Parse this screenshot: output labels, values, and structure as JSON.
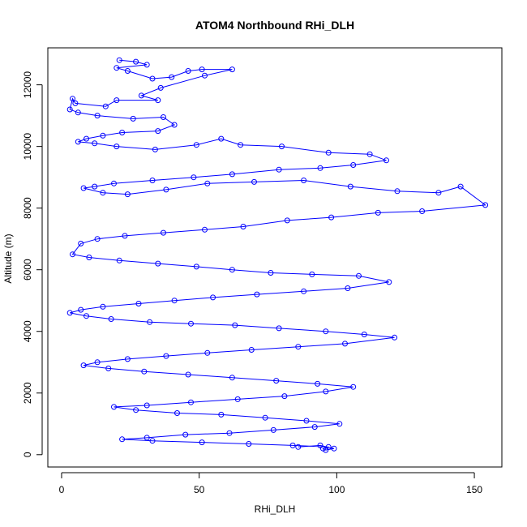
{
  "chart_data": {
    "type": "scatter",
    "title": "ATOM4 Northbound RHi_DLH",
    "xlabel": "RHi_DLH",
    "ylabel": "Altitude (m)",
    "xlim": [
      -5,
      160
    ],
    "ylim": [
      -400,
      13200
    ],
    "x_ticks": [
      0,
      50,
      100,
      150
    ],
    "y_ticks": [
      0,
      2000,
      4000,
      6000,
      8000,
      10000,
      12000
    ],
    "grid": false,
    "legend": "none",
    "colors": {
      "series": "#0000ff",
      "axes": "#000000",
      "background": "#ffffff"
    },
    "series": [
      {
        "values": [
          [
            21,
            12800
          ],
          [
            27,
            12750
          ],
          [
            31,
            12650
          ],
          [
            20,
            12550
          ],
          [
            24,
            12450
          ],
          [
            33,
            12200
          ],
          [
            40,
            12250
          ],
          [
            46,
            12450
          ],
          [
            51,
            12500
          ],
          [
            62,
            12500
          ],
          [
            52,
            12300
          ],
          [
            36,
            11900
          ],
          [
            29,
            11650
          ],
          [
            35,
            11500
          ],
          [
            20,
            11500
          ],
          [
            16,
            11300
          ],
          [
            5,
            11400
          ],
          [
            4,
            11550
          ],
          [
            3,
            11200
          ],
          [
            6,
            11100
          ],
          [
            13,
            11000
          ],
          [
            26,
            10900
          ],
          [
            37,
            10950
          ],
          [
            41,
            10700
          ],
          [
            35,
            10500
          ],
          [
            22,
            10450
          ],
          [
            15,
            10350
          ],
          [
            9,
            10250
          ],
          [
            6,
            10150
          ],
          [
            12,
            10100
          ],
          [
            20,
            10000
          ],
          [
            34,
            9900
          ],
          [
            49,
            10050
          ],
          [
            58,
            10250
          ],
          [
            65,
            10050
          ],
          [
            80,
            10000
          ],
          [
            97,
            9800
          ],
          [
            112,
            9750
          ],
          [
            118,
            9550
          ],
          [
            106,
            9400
          ],
          [
            94,
            9300
          ],
          [
            79,
            9250
          ],
          [
            62,
            9100
          ],
          [
            48,
            9000
          ],
          [
            33,
            8900
          ],
          [
            19,
            8800
          ],
          [
            12,
            8700
          ],
          [
            8,
            8650
          ],
          [
            15,
            8500
          ],
          [
            24,
            8450
          ],
          [
            38,
            8600
          ],
          [
            53,
            8800
          ],
          [
            70,
            8850
          ],
          [
            88,
            8900
          ],
          [
            105,
            8700
          ],
          [
            122,
            8550
          ],
          [
            137,
            8500
          ],
          [
            145,
            8700
          ],
          [
            154,
            8100
          ],
          [
            131,
            7900
          ],
          [
            115,
            7850
          ],
          [
            98,
            7700
          ],
          [
            82,
            7600
          ],
          [
            66,
            7400
          ],
          [
            52,
            7300
          ],
          [
            37,
            7200
          ],
          [
            23,
            7100
          ],
          [
            13,
            7000
          ],
          [
            7,
            6850
          ],
          [
            4,
            6500
          ],
          [
            10,
            6400
          ],
          [
            21,
            6300
          ],
          [
            35,
            6200
          ],
          [
            49,
            6100
          ],
          [
            62,
            6000
          ],
          [
            76,
            5900
          ],
          [
            91,
            5850
          ],
          [
            108,
            5800
          ],
          [
            119,
            5600
          ],
          [
            104,
            5400
          ],
          [
            88,
            5300
          ],
          [
            71,
            5200
          ],
          [
            55,
            5100
          ],
          [
            41,
            5000
          ],
          [
            28,
            4900
          ],
          [
            15,
            4800
          ],
          [
            7,
            4700
          ],
          [
            3,
            4600
          ],
          [
            9,
            4500
          ],
          [
            18,
            4400
          ],
          [
            32,
            4300
          ],
          [
            47,
            4250
          ],
          [
            63,
            4200
          ],
          [
            79,
            4100
          ],
          [
            96,
            4000
          ],
          [
            110,
            3900
          ],
          [
            121,
            3800
          ],
          [
            103,
            3600
          ],
          [
            86,
            3500
          ],
          [
            69,
            3400
          ],
          [
            53,
            3300
          ],
          [
            38,
            3200
          ],
          [
            24,
            3100
          ],
          [
            13,
            3000
          ],
          [
            8,
            2900
          ],
          [
            17,
            2800
          ],
          [
            30,
            2700
          ],
          [
            46,
            2600
          ],
          [
            62,
            2500
          ],
          [
            78,
            2400
          ],
          [
            93,
            2300
          ],
          [
            106,
            2200
          ],
          [
            96,
            2050
          ],
          [
            81,
            1900
          ],
          [
            64,
            1800
          ],
          [
            47,
            1700
          ],
          [
            31,
            1600
          ],
          [
            19,
            1550
          ],
          [
            27,
            1450
          ],
          [
            42,
            1350
          ],
          [
            58,
            1300
          ],
          [
            74,
            1200
          ],
          [
            89,
            1100
          ],
          [
            101,
            1000
          ],
          [
            92,
            900
          ],
          [
            77,
            800
          ],
          [
            61,
            700
          ],
          [
            45,
            650
          ],
          [
            31,
            550
          ],
          [
            22,
            500
          ],
          [
            33,
            450
          ],
          [
            51,
            400
          ],
          [
            68,
            350
          ],
          [
            84,
            300
          ],
          [
            97,
            250
          ],
          [
            95,
            200
          ],
          [
            96,
            150
          ],
          [
            99,
            200
          ],
          [
            94,
            300
          ],
          [
            86,
            250
          ]
        ]
      }
    ]
  }
}
